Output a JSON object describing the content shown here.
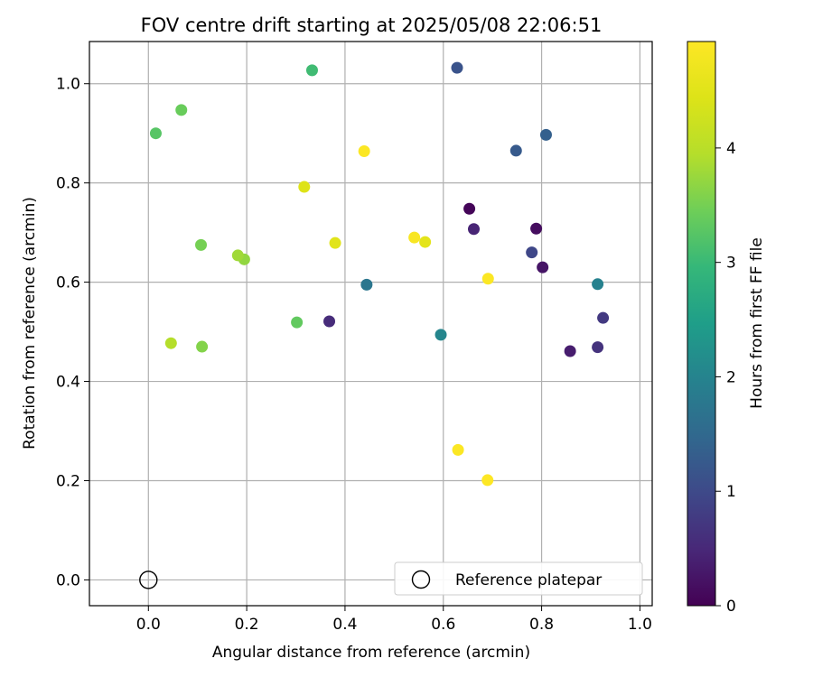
{
  "chart_data": {
    "type": "scatter",
    "title": "FOV centre drift starting at 2025/05/08 22:06:51",
    "xlabel": "Angular distance from reference (arcmin)",
    "ylabel": "Rotation from reference (arcmin)",
    "xlim": [
      -0.12,
      1.025
    ],
    "ylim": [
      -0.052,
      1.085
    ],
    "xticks": [
      0.0,
      0.2,
      0.4,
      0.6,
      0.8,
      1.0
    ],
    "yticks": [
      0.0,
      0.2,
      0.4,
      0.6,
      0.8,
      1.0
    ],
    "xtick_labels": [
      "0.0",
      "0.2",
      "0.4",
      "0.6",
      "0.8",
      "1.0"
    ],
    "ytick_labels": [
      "0.0",
      "0.2",
      "0.4",
      "0.6",
      "0.8",
      "1.0"
    ],
    "grid": true,
    "colormap": "viridis",
    "colorbar": {
      "label": "Hours from first FF file",
      "range": [
        0,
        4.93
      ],
      "ticks": [
        0,
        1,
        2,
        3,
        4
      ],
      "tick_labels": [
        "0",
        "1",
        "2",
        "3",
        "4"
      ]
    },
    "legend": {
      "placement": "lower-right",
      "entries": [
        {
          "label": "Reference platepar",
          "marker": "open-circle"
        }
      ]
    },
    "reference_point": {
      "x": 0.0,
      "y": 0.0
    },
    "points": [
      {
        "x": 0.653,
        "y": 0.748,
        "hours": 0.05
      },
      {
        "x": 0.789,
        "y": 0.708,
        "hours": 0.15
      },
      {
        "x": 0.802,
        "y": 0.63,
        "hours": 0.25
      },
      {
        "x": 0.858,
        "y": 0.461,
        "hours": 0.35
      },
      {
        "x": 0.662,
        "y": 0.707,
        "hours": 0.45
      },
      {
        "x": 0.368,
        "y": 0.521,
        "hours": 0.55
      },
      {
        "x": 0.914,
        "y": 0.469,
        "hours": 0.65
      },
      {
        "x": 0.925,
        "y": 0.528,
        "hours": 0.75
      },
      {
        "x": 0.78,
        "y": 0.66,
        "hours": 0.95
      },
      {
        "x": 0.628,
        "y": 1.032,
        "hours": 1.15
      },
      {
        "x": 0.748,
        "y": 0.865,
        "hours": 1.25
      },
      {
        "x": 0.809,
        "y": 0.897,
        "hours": 1.35
      },
      {
        "x": 0.444,
        "y": 0.595,
        "hours": 1.75
      },
      {
        "x": 0.914,
        "y": 0.596,
        "hours": 1.95
      },
      {
        "x": 0.595,
        "y": 0.494,
        "hours": 2.05
      },
      {
        "x": 0.333,
        "y": 1.027,
        "hours": 3.05
      },
      {
        "x": 0.015,
        "y": 0.9,
        "hours": 3.25
      },
      {
        "x": 0.302,
        "y": 0.519,
        "hours": 3.35
      },
      {
        "x": 0.067,
        "y": 0.947,
        "hours": 3.4
      },
      {
        "x": 0.109,
        "y": 0.47,
        "hours": 3.6
      },
      {
        "x": 0.107,
        "y": 0.675,
        "hours": 3.5
      },
      {
        "x": 0.195,
        "y": 0.646,
        "hours": 3.7
      },
      {
        "x": 0.182,
        "y": 0.654,
        "hours": 3.8
      },
      {
        "x": 0.046,
        "y": 0.477,
        "hours": 3.95
      },
      {
        "x": 0.317,
        "y": 0.792,
        "hours": 4.45
      },
      {
        "x": 0.38,
        "y": 0.679,
        "hours": 4.5
      },
      {
        "x": 0.563,
        "y": 0.681,
        "hours": 4.55
      },
      {
        "x": 0.541,
        "y": 0.69,
        "hours": 4.85
      },
      {
        "x": 0.439,
        "y": 0.864,
        "hours": 4.9
      },
      {
        "x": 0.691,
        "y": 0.607,
        "hours": 4.9
      },
      {
        "x": 0.63,
        "y": 0.262,
        "hours": 4.9
      },
      {
        "x": 0.69,
        "y": 0.201,
        "hours": 4.93
      }
    ]
  }
}
